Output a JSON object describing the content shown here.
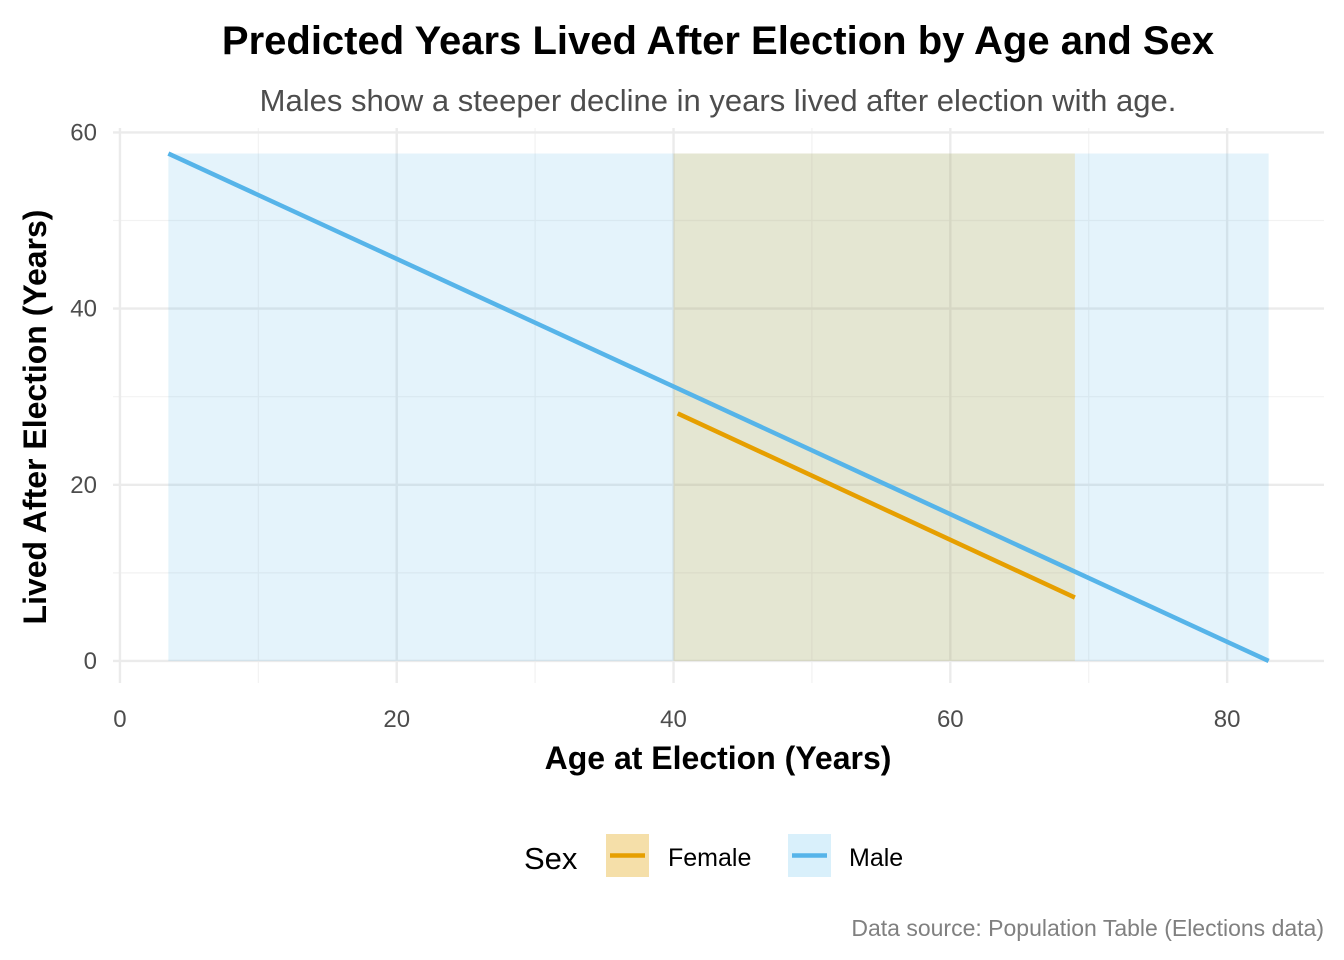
{
  "chart_data": {
    "type": "line",
    "title": "Predicted Years Lived After Election by Age and Sex",
    "subtitle": "Males show a steeper decline in years lived after election with age.",
    "xlabel": "Age at Election (Years)",
    "ylabel": "Lived After Election (Years)",
    "xlim": [
      -0.5,
      87
    ],
    "ylim": [
      -2.5,
      60.5
    ],
    "xticks": [
      0,
      20,
      40,
      60,
      80
    ],
    "yticks": [
      0,
      20,
      40,
      60
    ],
    "grid": true,
    "legend_position": "bottom",
    "legend_title": "Sex",
    "caption": "Data source: Population Table (Elections data)",
    "series": [
      {
        "name": "Female",
        "color": "#E69F00",
        "ribbon_color": "#F5DFA9",
        "x": [
          40.3,
          69.0
        ],
        "y": [
          28.1,
          7.2
        ],
        "ribbon": {
          "x": [
            40.0,
            69.0
          ],
          "ymin": [
            0,
            0
          ],
          "ymax": [
            57.6,
            57.6
          ]
        }
      },
      {
        "name": "Male",
        "color": "#56B4E9",
        "ribbon_color": "#D9F0FB",
        "x": [
          3.5,
          83.0
        ],
        "y": [
          57.6,
          0.0
        ],
        "ribbon": {
          "x": [
            3.5,
            83.0
          ],
          "ymin": [
            0,
            0
          ],
          "ymax": [
            57.6,
            57.6
          ]
        }
      }
    ]
  }
}
